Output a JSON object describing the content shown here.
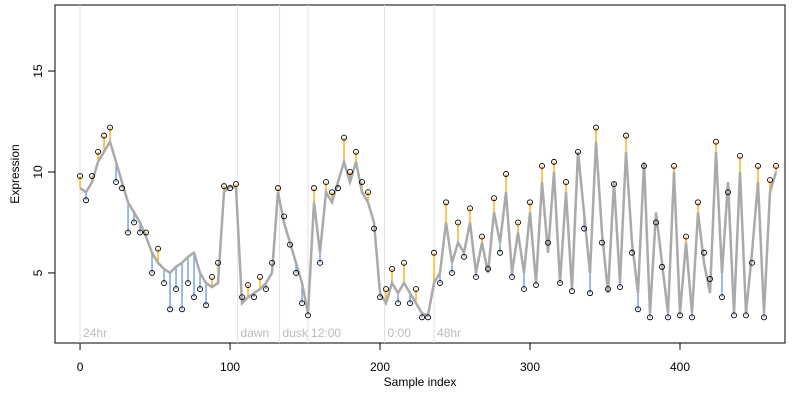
{
  "chart_data": {
    "type": "line",
    "x_label": "Sample index",
    "y_label": "Expression",
    "xlim": [
      -16.7,
      470
    ],
    "ylim": [
      1.53,
      18.27
    ],
    "xticks": [
      0,
      100,
      200,
      300,
      400
    ],
    "yticks": [
      5,
      10,
      15
    ],
    "x": [
      0,
      4,
      8,
      12,
      16,
      20,
      24,
      28,
      32,
      36,
      40,
      44,
      48,
      52,
      56,
      60,
      64,
      68,
      72,
      76,
      80,
      84,
      88,
      92,
      96,
      100,
      104,
      108,
      112,
      116,
      120,
      124,
      128,
      132,
      136,
      140,
      144,
      148,
      152,
      156,
      160,
      164,
      168,
      172,
      176,
      180,
      184,
      188,
      192,
      196,
      200,
      204,
      208,
      212,
      216,
      220,
      224,
      228,
      232,
      236,
      240,
      244,
      248,
      252,
      256,
      260,
      264,
      268,
      272,
      276,
      280,
      284,
      288,
      292,
      296,
      300,
      304,
      308,
      312,
      316,
      320,
      324,
      328,
      332,
      336,
      340,
      344,
      348,
      352,
      356,
      360,
      364,
      368,
      372,
      376,
      380,
      384,
      388,
      392,
      396,
      400,
      404,
      408,
      412,
      416,
      420,
      424,
      428,
      432,
      436,
      440,
      444,
      448,
      452,
      456,
      460,
      464
    ],
    "fitted": {
      "color": "#aaaaaa",
      "values": [
        9.2,
        9.0,
        9.5,
        10.5,
        11.0,
        11.5,
        10.5,
        9.5,
        8.5,
        8.0,
        7.5,
        6.8,
        6.0,
        5.5,
        5.2,
        5.0,
        5.3,
        5.5,
        5.8,
        6.0,
        5.0,
        4.5,
        4.3,
        4.5,
        9.0,
        9.3,
        9.2,
        3.5,
        3.8,
        4.0,
        4.2,
        4.5,
        5.0,
        9.0,
        7.5,
        6.5,
        5.5,
        4.5,
        3.0,
        8.5,
        6.0,
        9.0,
        8.5,
        9.5,
        10.5,
        9.5,
        10.5,
        9.0,
        8.5,
        7.5,
        4.0,
        3.5,
        4.5,
        4.0,
        4.5,
        4.0,
        3.5,
        3.0,
        2.9,
        4.5,
        5.0,
        7.5,
        5.5,
        6.5,
        6.0,
        7.5,
        5.0,
        6.5,
        5.0,
        8.0,
        6.5,
        9.0,
        5.0,
        7.0,
        5.0,
        8.0,
        4.5,
        9.5,
        6.0,
        10.0,
        4.5,
        9.0,
        4.2,
        11.0,
        8.0,
        5.0,
        11.5,
        7.0,
        4.0,
        9.5,
        4.5,
        11.0,
        6.5,
        4.0,
        10.5,
        3.0,
        8.0,
        5.5,
        3.0,
        10.0,
        3.0,
        6.5,
        3.0,
        8.0,
        5.5,
        4.0,
        11.0,
        5.0,
        9.5,
        3.0,
        10.0,
        3.0,
        6.0,
        9.5,
        3.0,
        9.0,
        10.0
      ]
    },
    "observed": {
      "color": "#000000",
      "values": [
        9.8,
        8.6,
        9.8,
        11.0,
        11.8,
        12.2,
        9.5,
        9.2,
        7.0,
        7.5,
        7.0,
        7.0,
        5.0,
        6.2,
        4.5,
        3.2,
        4.2,
        3.2,
        4.5,
        3.8,
        4.2,
        3.4,
        4.8,
        5.5,
        9.3,
        9.2,
        9.4,
        3.8,
        4.4,
        3.8,
        4.8,
        4.2,
        5.5,
        9.2,
        7.8,
        6.4,
        5.0,
        3.5,
        2.9,
        9.2,
        5.5,
        9.5,
        9.0,
        9.2,
        11.7,
        10.0,
        11.0,
        9.5,
        9.0,
        7.2,
        3.8,
        4.2,
        5.2,
        3.5,
        5.5,
        3.5,
        4.2,
        2.8,
        2.8,
        6.0,
        4.5,
        8.5,
        5.0,
        7.5,
        5.8,
        8.2,
        4.8,
        6.8,
        5.2,
        8.7,
        6.0,
        9.9,
        4.8,
        7.5,
        4.2,
        8.5,
        4.4,
        10.3,
        6.5,
        10.5,
        4.5,
        9.5,
        4.1,
        11.0,
        7.2,
        4.0,
        12.2,
        6.5,
        4.2,
        9.4,
        4.3,
        11.8,
        6.0,
        3.2,
        10.3,
        2.8,
        7.5,
        5.3,
        2.8,
        10.3,
        2.9,
        6.8,
        2.8,
        8.5,
        6.0,
        4.7,
        11.5,
        3.8,
        9.0,
        2.9,
        10.8,
        2.9,
        5.5,
        10.3,
        2.8,
        9.6,
        10.3
      ]
    },
    "residual_colors": {
      "above": "#ffa500",
      "below": "#6495ed"
    },
    "annotations": [
      {
        "x": 0,
        "label": "24hr"
      },
      {
        "x": 105,
        "label": "dawn"
      },
      {
        "x": 133,
        "label": "dusk"
      },
      {
        "x": 152,
        "label": "12:00"
      },
      {
        "x": 203,
        "label": "0:00"
      },
      {
        "x": 236,
        "label": "48hr"
      }
    ]
  }
}
